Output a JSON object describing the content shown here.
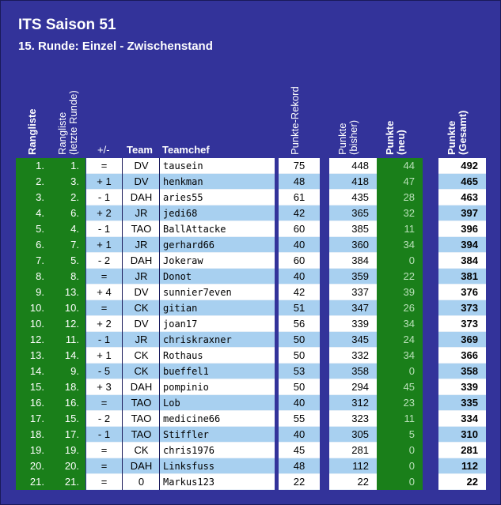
{
  "header": {
    "title": "ITS Saison 51",
    "subtitle": "15. Runde: Einzel - Zwischenstand"
  },
  "columns": {
    "rangliste": "Rangliste",
    "rangliste_letzte_1": "Rangliste",
    "rangliste_letzte_2": "(letzte Runde)",
    "diff": "+/-",
    "team": "Team",
    "teamchef": "Teamchef",
    "rekord": "Punkte-Rekord",
    "bisher_1": "Punkte",
    "bisher_2": "(bisher)",
    "neu_1": "Punkte",
    "neu_2": "(neu)",
    "gesamt_1": "Punkte",
    "gesamt_2": "(Gesamt)"
  },
  "rows": [
    {
      "rank": "1.",
      "last": "1.",
      "diff": "=",
      "team": "DV",
      "chef": "tausein",
      "rekord": "75",
      "bisher": "448",
      "neu": "44",
      "gesamt": "492"
    },
    {
      "rank": "2.",
      "last": "3.",
      "diff": "+ 1",
      "team": "DV",
      "chef": "henkman",
      "rekord": "48",
      "bisher": "418",
      "neu": "47",
      "gesamt": "465"
    },
    {
      "rank": "3.",
      "last": "2.",
      "diff": "- 1",
      "team": "DAH",
      "chef": "aries55",
      "rekord": "61",
      "bisher": "435",
      "neu": "28",
      "gesamt": "463"
    },
    {
      "rank": "4.",
      "last": "6.",
      "diff": "+ 2",
      "team": "JR",
      "chef": "jedi68",
      "rekord": "42",
      "bisher": "365",
      "neu": "32",
      "gesamt": "397"
    },
    {
      "rank": "5.",
      "last": "4.",
      "diff": "- 1",
      "team": "TAO",
      "chef": "BallAttacke",
      "rekord": "60",
      "bisher": "385",
      "neu": "11",
      "gesamt": "396"
    },
    {
      "rank": "6.",
      "last": "7.",
      "diff": "+ 1",
      "team": "JR",
      "chef": "gerhard66",
      "rekord": "40",
      "bisher": "360",
      "neu": "34",
      "gesamt": "394"
    },
    {
      "rank": "7.",
      "last": "5.",
      "diff": "- 2",
      "team": "DAH",
      "chef": "Jokeraw",
      "rekord": "60",
      "bisher": "384",
      "neu": "0",
      "gesamt": "384"
    },
    {
      "rank": "8.",
      "last": "8.",
      "diff": "=",
      "team": "JR",
      "chef": "Donot",
      "rekord": "40",
      "bisher": "359",
      "neu": "22",
      "gesamt": "381"
    },
    {
      "rank": "9.",
      "last": "13.",
      "diff": "+ 4",
      "team": "DV",
      "chef": "sunnier7even",
      "rekord": "42",
      "bisher": "337",
      "neu": "39",
      "gesamt": "376"
    },
    {
      "rank": "10.",
      "last": "10.",
      "diff": "=",
      "team": "CK",
      "chef": "gitian",
      "rekord": "51",
      "bisher": "347",
      "neu": "26",
      "gesamt": "373"
    },
    {
      "rank": "10.",
      "last": "12.",
      "diff": "+ 2",
      "team": "DV",
      "chef": "joan17",
      "rekord": "56",
      "bisher": "339",
      "neu": "34",
      "gesamt": "373"
    },
    {
      "rank": "12.",
      "last": "11.",
      "diff": "- 1",
      "team": "JR",
      "chef": "chriskraxner",
      "rekord": "50",
      "bisher": "345",
      "neu": "24",
      "gesamt": "369"
    },
    {
      "rank": "13.",
      "last": "14.",
      "diff": "+ 1",
      "team": "CK",
      "chef": "Rothaus",
      "rekord": "50",
      "bisher": "332",
      "neu": "34",
      "gesamt": "366"
    },
    {
      "rank": "14.",
      "last": "9.",
      "diff": "- 5",
      "team": "CK",
      "chef": "bueffel1",
      "rekord": "53",
      "bisher": "358",
      "neu": "0",
      "gesamt": "358"
    },
    {
      "rank": "15.",
      "last": "18.",
      "diff": "+ 3",
      "team": "DAH",
      "chef": "pompinio",
      "rekord": "50",
      "bisher": "294",
      "neu": "45",
      "gesamt": "339"
    },
    {
      "rank": "16.",
      "last": "16.",
      "diff": "=",
      "team": "TAO",
      "chef": "Lob",
      "rekord": "40",
      "bisher": "312",
      "neu": "23",
      "gesamt": "335"
    },
    {
      "rank": "17.",
      "last": "15.",
      "diff": "- 2",
      "team": "TAO",
      "chef": "medicine66",
      "rekord": "55",
      "bisher": "323",
      "neu": "11",
      "gesamt": "334"
    },
    {
      "rank": "18.",
      "last": "17.",
      "diff": "- 1",
      "team": "TAO",
      "chef": "Stiffler",
      "rekord": "40",
      "bisher": "305",
      "neu": "5",
      "gesamt": "310"
    },
    {
      "rank": "19.",
      "last": "19.",
      "diff": "=",
      "team": "CK",
      "chef": "chris1976",
      "rekord": "45",
      "bisher": "281",
      "neu": "0",
      "gesamt": "281"
    },
    {
      "rank": "20.",
      "last": "20.",
      "diff": "=",
      "team": "DAH",
      "chef": "Linksfuss",
      "rekord": "48",
      "bisher": "112",
      "neu": "0",
      "gesamt": "112"
    },
    {
      "rank": "21.",
      "last": "21.",
      "diff": "=",
      "team": "0",
      "chef": "Markus123",
      "rekord": "22",
      "bisher": "22",
      "neu": "0",
      "gesamt": "22"
    }
  ]
}
